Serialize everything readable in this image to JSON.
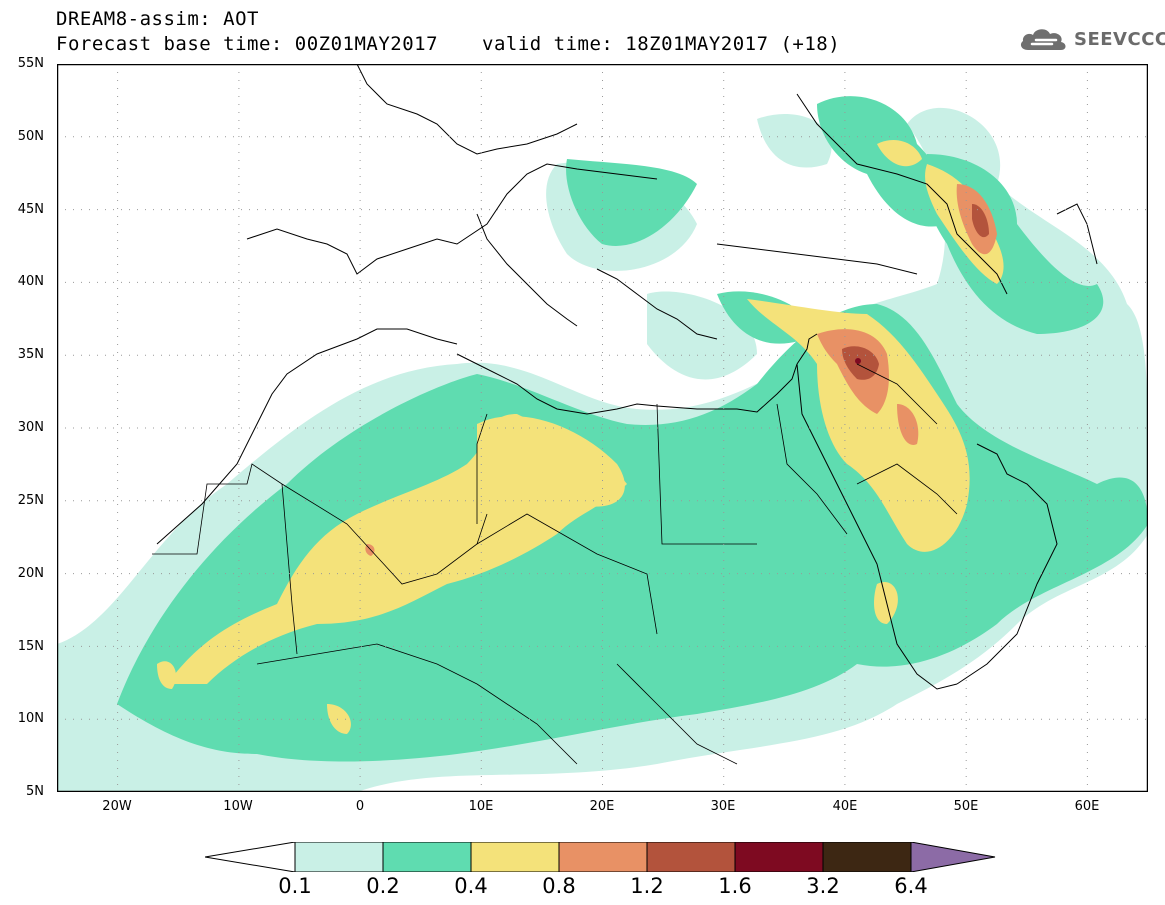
{
  "title": {
    "line1": "DREAM8-assim: AOT",
    "line2": "Forecast base time: 00Z01MAY2017",
    "valid": "valid time: 18Z01MAY2017 (+18)"
  },
  "logo": {
    "text": "SEEVCCC",
    "icon": "cloud-icon"
  },
  "map": {
    "lon_range": [
      -25,
      65
    ],
    "lat_range": [
      5,
      55
    ],
    "grid": "dotted"
  },
  "axes": {
    "lat_labels": [
      "55N",
      "50N",
      "45N",
      "40N",
      "35N",
      "30N",
      "25N",
      "20N",
      "15N",
      "10N",
      "5N"
    ],
    "lon_labels": [
      "20W",
      "10W",
      "0",
      "10E",
      "20E",
      "30E",
      "40E",
      "50E",
      "60E"
    ]
  },
  "colorbar": {
    "colors": [
      "#ffffff",
      "#c9f0e6",
      "#5fdcb0",
      "#f4e27a",
      "#e89165",
      "#b3533c",
      "#7e0a21",
      "#3d2713",
      "#8c6ba6"
    ],
    "labels": [
      "0.1",
      "0.2",
      "0.4",
      "0.8",
      "1.2",
      "1.6",
      "3.2",
      "6.4"
    ]
  }
}
